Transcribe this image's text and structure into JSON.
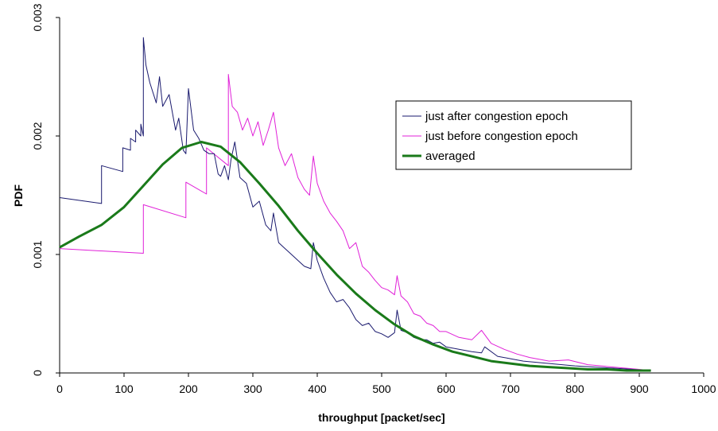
{
  "chart_data": {
    "type": "line",
    "title": "",
    "xlabel": "throughput [packet/sec]",
    "ylabel": "PDF",
    "xlim": [
      0,
      1000
    ],
    "ylim": [
      0,
      0.003
    ],
    "x_ticks": [
      "0",
      "100",
      "200",
      "300",
      "400",
      "500",
      "600",
      "700",
      "800",
      "900",
      "1000"
    ],
    "y_ticks": [
      "0",
      "0.001",
      "0.002",
      "0.003"
    ],
    "grid": false,
    "legend_position": "top-right",
    "series": [
      {
        "name": "just after congestion epoch",
        "color": "#1a1a6e",
        "x": [
          0,
          65,
          65,
          98,
          98,
          110,
          110,
          118,
          118,
          126,
          126,
          130,
          130,
          134,
          140,
          150,
          155,
          160,
          170,
          180,
          185,
          192,
          196,
          200,
          208,
          216,
          224,
          232,
          240,
          246,
          250,
          256,
          262,
          266,
          272,
          280,
          290,
          300,
          310,
          320,
          328,
          332,
          340,
          350,
          360,
          370,
          380,
          390,
          394,
          400,
          410,
          420,
          430,
          440,
          450,
          460,
          470,
          480,
          490,
          500,
          510,
          520,
          524,
          530,
          540,
          550,
          560,
          570,
          580,
          590,
          600,
          620,
          640,
          655,
          660,
          680,
          700,
          720,
          740,
          760,
          780,
          800,
          830,
          860,
          890,
          918
        ],
        "y": [
          0.00148,
          0.00143,
          0.00175,
          0.0017,
          0.0019,
          0.00188,
          0.00198,
          0.00195,
          0.00205,
          0.002,
          0.0021,
          0.002,
          0.00283,
          0.0026,
          0.00245,
          0.00228,
          0.0025,
          0.00225,
          0.00235,
          0.00205,
          0.00215,
          0.00188,
          0.00185,
          0.0024,
          0.00205,
          0.00198,
          0.00188,
          0.00185,
          0.00185,
          0.00168,
          0.00166,
          0.00175,
          0.00163,
          0.0018,
          0.00195,
          0.00165,
          0.0016,
          0.0014,
          0.00145,
          0.00125,
          0.0012,
          0.00135,
          0.0011,
          0.00105,
          0.001,
          0.00095,
          0.0009,
          0.00088,
          0.0011,
          0.00095,
          0.0008,
          0.00068,
          0.0006,
          0.00062,
          0.00055,
          0.00045,
          0.0004,
          0.00042,
          0.00035,
          0.00033,
          0.0003,
          0.00034,
          0.00053,
          0.00036,
          0.00034,
          0.0003,
          0.00028,
          0.00028,
          0.00025,
          0.00026,
          0.00022,
          0.0002,
          0.00018,
          0.00017,
          0.00022,
          0.00014,
          0.00012,
          0.0001,
          9e-05,
          8e-05,
          7e-05,
          6e-05,
          5e-05,
          4e-05,
          3e-05,
          2e-05
        ]
      },
      {
        "name": "just before congestion epoch",
        "color": "#e020d8",
        "x": [
          0,
          130,
          130,
          196,
          196,
          228,
          228,
          262,
          262,
          268,
          276,
          284,
          292,
          300,
          308,
          316,
          324,
          332,
          340,
          350,
          360,
          370,
          380,
          388,
          394,
          400,
          410,
          420,
          430,
          440,
          450,
          460,
          470,
          480,
          490,
          500,
          510,
          520,
          524,
          530,
          540,
          550,
          560,
          570,
          580,
          590,
          600,
          620,
          640,
          655,
          670,
          690,
          710,
          730,
          760,
          790,
          820,
          860,
          900,
          918
        ],
        "y": [
          0.00105,
          0.00101,
          0.00142,
          0.00131,
          0.00161,
          0.00151,
          0.0019,
          0.00175,
          0.00252,
          0.00225,
          0.0022,
          0.00205,
          0.00215,
          0.002,
          0.00212,
          0.00192,
          0.00205,
          0.0022,
          0.0019,
          0.00175,
          0.00185,
          0.00165,
          0.00155,
          0.0015,
          0.00183,
          0.0016,
          0.00145,
          0.00135,
          0.00128,
          0.0012,
          0.00105,
          0.0011,
          0.0009,
          0.00085,
          0.00078,
          0.00072,
          0.0007,
          0.00066,
          0.00082,
          0.00065,
          0.0006,
          0.0005,
          0.00048,
          0.00042,
          0.0004,
          0.00035,
          0.00035,
          0.0003,
          0.00028,
          0.00036,
          0.00025,
          0.0002,
          0.00016,
          0.00013,
          0.0001,
          0.00011,
          7e-05,
          5e-05,
          3e-05,
          2e-05
        ]
      },
      {
        "name": "averaged",
        "color": "#1a7a1a",
        "x": [
          0,
          30,
          65,
          100,
          130,
          160,
          190,
          220,
          250,
          280,
          310,
          340,
          370,
          400,
          430,
          460,
          490,
          520,
          550,
          580,
          610,
          640,
          670,
          700,
          730,
          760,
          790,
          820,
          850,
          880,
          918
        ],
        "y": [
          0.00106,
          0.00115,
          0.00125,
          0.0014,
          0.00158,
          0.00176,
          0.0019,
          0.00195,
          0.00191,
          0.00178,
          0.0016,
          0.00141,
          0.0012,
          0.00101,
          0.00083,
          0.00067,
          0.00053,
          0.00041,
          0.00031,
          0.00024,
          0.00018,
          0.00014,
          0.0001,
          8e-05,
          6e-05,
          5e-05,
          4e-05,
          3e-05,
          3e-05,
          2e-05,
          2e-05
        ]
      }
    ]
  }
}
